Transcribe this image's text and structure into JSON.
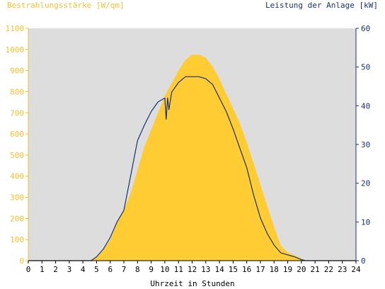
{
  "chart_data": {
    "type": "area",
    "left_axis_label": "Bestrahlungsstärke [W/qm]",
    "right_axis_label": "Leistung der Anlage [kW]",
    "xlabel": "Uhrzeit in Stunden",
    "xlim": [
      0,
      24
    ],
    "x_ticks": [
      0,
      1,
      2,
      3,
      4,
      5,
      6,
      7,
      8,
      9,
      10,
      11,
      12,
      13,
      14,
      15,
      16,
      17,
      18,
      19,
      20,
      21,
      22,
      23,
      24
    ],
    "ylim_left": [
      0,
      1100
    ],
    "y_ticks_left": [
      0,
      100,
      200,
      300,
      400,
      500,
      600,
      700,
      800,
      900,
      1000,
      1100
    ],
    "ylim_right": [
      0,
      60
    ],
    "y_ticks_right": [
      0,
      10,
      20,
      30,
      40,
      50,
      60
    ],
    "grid": false,
    "colors": {
      "irradiance": "#ffcc33",
      "power": "#1a3276",
      "plot_bg": "#dddddd",
      "left_axis": "#f5c02f",
      "right_axis": "#1a3276"
    },
    "series": [
      {
        "axis": "left",
        "style": "filled-area",
        "x": [
          0,
          4.5,
          5.0,
          5.5,
          6.0,
          6.5,
          7.0,
          7.5,
          8.0,
          8.5,
          9.0,
          9.5,
          10.0,
          10.5,
          11.0,
          11.5,
          12.0,
          12.5,
          13.0,
          13.5,
          14.0,
          14.5,
          15.0,
          15.5,
          16.0,
          16.5,
          17.0,
          17.5,
          18.0,
          18.5,
          19.0,
          19.5,
          20.0,
          20.3,
          20.5,
          24
        ],
        "values": [
          0,
          0,
          15,
          50,
          100,
          180,
          240,
          320,
          430,
          540,
          620,
          700,
          780,
          840,
          900,
          950,
          975,
          975,
          960,
          920,
          860,
          790,
          720,
          650,
          560,
          460,
          360,
          260,
          160,
          70,
          40,
          25,
          10,
          0,
          0,
          0
        ]
      },
      {
        "axis": "right",
        "style": "line",
        "x": [
          0,
          4.6,
          5.0,
          5.5,
          6.0,
          6.5,
          7.0,
          7.5,
          8.0,
          8.5,
          9.0,
          9.5,
          10.0,
          10.1,
          10.2,
          10.3,
          10.5,
          11.0,
          11.5,
          12.0,
          12.5,
          13.0,
          13.5,
          14.0,
          14.5,
          15.0,
          15.5,
          16.0,
          16.5,
          17.0,
          17.5,
          18.0,
          18.5,
          19.0,
          19.5,
          20.0,
          20.3,
          24
        ],
        "values": [
          0,
          0,
          1,
          3,
          6,
          10,
          13,
          22,
          31,
          35,
          38.5,
          41,
          42,
          36.5,
          42,
          39,
          43.5,
          46,
          47.5,
          47.5,
          47.5,
          47,
          45.5,
          42,
          38.5,
          34,
          29,
          24,
          17,
          11,
          7,
          4,
          2,
          1.5,
          1,
          0.3,
          0,
          0
        ]
      }
    ]
  }
}
